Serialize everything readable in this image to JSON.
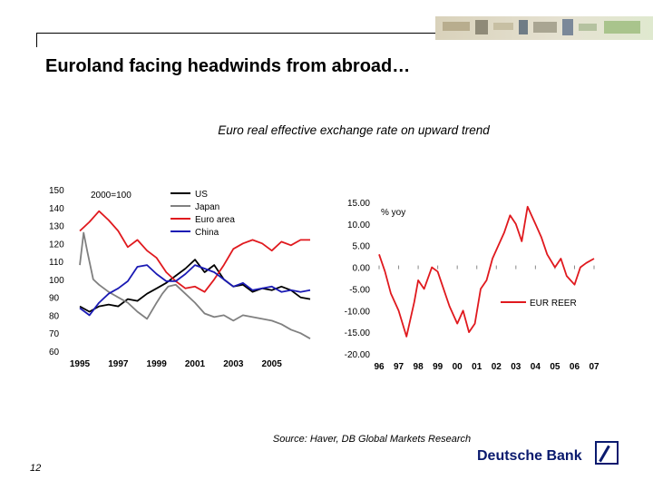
{
  "slide": {
    "title": "Euroland facing headwinds from abroad…",
    "subtitle": "Euro real effective exchange rate on upward trend",
    "source": "Source: Haver, DB Global Markets Research",
    "page_number": "12",
    "logo_text": "Deutsche Bank"
  },
  "colors": {
    "us": "#000000",
    "japan": "#808080",
    "euro": "#e0191e",
    "china": "#1a1ab4",
    "eur_reer": "#e0191e",
    "logo": "#0a1a6e"
  },
  "chart_data": [
    {
      "type": "line",
      "annotation": "2000=100",
      "ylim": [
        60,
        150
      ],
      "yticks": [
        "150",
        "140",
        "130",
        "120",
        "110",
        "100",
        "90",
        "80",
        "70",
        "60"
      ],
      "xlim": [
        1995,
        2007
      ],
      "xticks": [
        "1995",
        "1997",
        "1999",
        "2001",
        "2003",
        "2005"
      ],
      "legend_position": "top-center",
      "series": [
        {
          "name": "US",
          "x": [
            1995,
            1995.5,
            1996,
            1996.5,
            1997,
            1997.5,
            1998,
            1998.5,
            1999,
            1999.5,
            2000,
            2000.5,
            2001,
            2001.5,
            2002,
            2002.5,
            2003,
            2003.5,
            2004,
            2004.5,
            2005,
            2005.5,
            2006,
            2006.5,
            2007
          ],
          "y": [
            85,
            82,
            85,
            86,
            85,
            89,
            88,
            92,
            95,
            98,
            102,
            106,
            111,
            104,
            108,
            100,
            96,
            97,
            93,
            95,
            94,
            96,
            94,
            90,
            89
          ]
        },
        {
          "name": "Japan",
          "x": [
            1995,
            1995.2,
            1995.4,
            1995.7,
            1996,
            1996.5,
            1997,
            1997.5,
            1998,
            1998.5,
            1999,
            1999.3,
            1999.6,
            2000,
            2000.5,
            2001,
            2001.5,
            2002,
            2002.5,
            2003,
            2003.5,
            2004,
            2004.5,
            2005,
            2005.5,
            2006,
            2006.5,
            2007
          ],
          "y": [
            108,
            126,
            115,
            100,
            97,
            93,
            90,
            87,
            82,
            78,
            87,
            92,
            96,
            97,
            92,
            87,
            81,
            79,
            80,
            77,
            80,
            79,
            78,
            77,
            75,
            72,
            70,
            67
          ]
        },
        {
          "name": "Euro area",
          "x": [
            1995,
            1995.5,
            1996,
            1996.5,
            1997,
            1997.5,
            1998,
            1998.5,
            1999,
            1999.5,
            2000,
            2000.5,
            2001,
            2001.5,
            2002,
            2002.5,
            2003,
            2003.5,
            2004,
            2004.5,
            2005,
            2005.5,
            2006,
            2006.5,
            2007
          ],
          "y": [
            127,
            132,
            138,
            133,
            127,
            118,
            122,
            116,
            112,
            104,
            99,
            95,
            96,
            93,
            100,
            108,
            117,
            120,
            122,
            120,
            116,
            121,
            119,
            122,
            122
          ]
        },
        {
          "name": "China",
          "x": [
            1995,
            1995.5,
            1996,
            1996.5,
            1997,
            1997.5,
            1998,
            1998.5,
            1999,
            1999.5,
            2000,
            2000.5,
            2001,
            2001.5,
            2002,
            2002.5,
            2003,
            2003.5,
            2004,
            2004.5,
            2005,
            2005.5,
            2006,
            2006.5,
            2007
          ],
          "y": [
            84,
            80,
            87,
            92,
            95,
            99,
            107,
            108,
            103,
            99,
            99,
            103,
            108,
            106,
            104,
            100,
            96,
            98,
            94,
            95,
            96,
            93,
            94,
            93,
            94
          ]
        }
      ]
    },
    {
      "type": "line",
      "annotation": "% yoy",
      "ylim": [
        -20,
        15
      ],
      "yticks": [
        "15.00",
        "10.00",
        "5.00",
        "0.00",
        "-5.00",
        "-10.00",
        "-15.00",
        "-20.00"
      ],
      "xlim": [
        1996,
        2007
      ],
      "xticks": [
        "96",
        "97",
        "98",
        "99",
        "00",
        "01",
        "02",
        "03",
        "04",
        "05",
        "06",
        "07"
      ],
      "legend_position": "middle-right",
      "series": [
        {
          "name": "EUR REER",
          "x": [
            1996,
            1996.3,
            1996.6,
            1997,
            1997.4,
            1997.8,
            1998,
            1998.3,
            1998.7,
            1999,
            1999.3,
            1999.6,
            2000,
            2000.3,
            2000.6,
            2000.9,
            2001.2,
            2001.5,
            2001.8,
            2002.1,
            2002.4,
            2002.7,
            2003,
            2003.3,
            2003.6,
            2004,
            2004.3,
            2004.6,
            2005,
            2005.3,
            2005.6,
            2006,
            2006.3,
            2006.6,
            2007
          ],
          "y": [
            3,
            -1,
            -6,
            -10,
            -16,
            -8,
            -3,
            -5,
            0,
            -1,
            -5,
            -9,
            -13,
            -10,
            -15,
            -13,
            -5,
            -3,
            2,
            5,
            8,
            12,
            10,
            6,
            14,
            10,
            7,
            3,
            0,
            2,
            -2,
            -4,
            0,
            1,
            2
          ]
        }
      ]
    }
  ]
}
